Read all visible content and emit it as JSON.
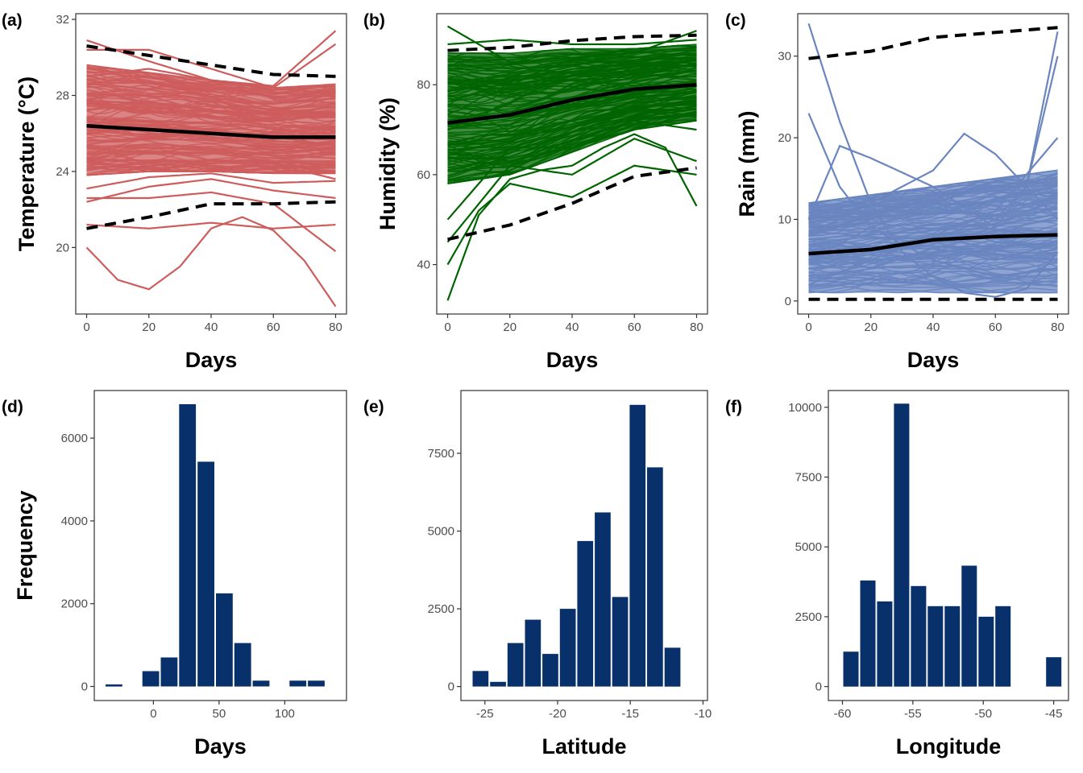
{
  "colors": {
    "temperature": "#cd5c5c",
    "humidity": "#006400",
    "rain": "#6a85c0",
    "histogram": "#08306b",
    "mean_line": "#000000",
    "frame": "#333333"
  },
  "chart_data": [
    {
      "panel": "(a)",
      "type": "line",
      "xlabel": "Days",
      "ylabel": "Temperature (°C)",
      "xlim": [
        -3.5,
        83.5
      ],
      "ylim": [
        16.5,
        32.3
      ],
      "xticks": [
        0,
        20,
        40,
        60,
        80
      ],
      "yticks": [
        20,
        24,
        28,
        32
      ],
      "band": {
        "x": [
          0,
          20,
          40,
          60,
          80
        ],
        "lower": [
          23.8,
          24.0,
          24.0,
          23.9,
          23.9
        ],
        "upper": [
          29.6,
          29.2,
          28.8,
          28.4,
          28.6
        ]
      },
      "mean": {
        "x": [
          0,
          20,
          40,
          60,
          80
        ],
        "y": [
          26.4,
          26.2,
          26.0,
          25.8,
          25.8
        ]
      },
      "upper_bound": {
        "x": [
          0,
          20,
          40,
          60,
          80
        ],
        "y": [
          30.6,
          30.1,
          29.6,
          29.1,
          29.0
        ]
      },
      "lower_bound": {
        "x": [
          0,
          20,
          40,
          60,
          80
        ],
        "y": [
          21.0,
          21.6,
          22.3,
          22.3,
          22.4
        ]
      },
      "sample_lines": [
        {
          "x": [
            0,
            10,
            20,
            30,
            40,
            50,
            60,
            70,
            80
          ],
          "y": [
            20.0,
            18.3,
            17.8,
            19.0,
            21.0,
            21.6,
            20.9,
            19.3,
            16.9
          ]
        },
        {
          "x": [
            0,
            20,
            40,
            60,
            80
          ],
          "y": [
            21.2,
            21.0,
            21.3,
            21.0,
            21.2
          ]
        },
        {
          "x": [
            0,
            20,
            40,
            60,
            80
          ],
          "y": [
            22.6,
            22.6,
            22.9,
            22.3,
            19.8
          ]
        },
        {
          "x": [
            0,
            20,
            40,
            60,
            80
          ],
          "y": [
            22.4,
            23.2,
            23.6,
            23.0,
            22.6
          ]
        },
        {
          "x": [
            0,
            20,
            40,
            60,
            80
          ],
          "y": [
            30.9,
            29.8,
            28.8,
            28.5,
            31.4
          ]
        },
        {
          "x": [
            0,
            20,
            40,
            60,
            80
          ],
          "y": [
            30.4,
            30.4,
            29.4,
            28.4,
            30.7
          ]
        },
        {
          "x": [
            0,
            20,
            40,
            60,
            80
          ],
          "y": [
            29.0,
            29.4,
            28.8,
            28.3,
            28.5
          ]
        },
        {
          "x": [
            0,
            20,
            40,
            60,
            80
          ],
          "y": [
            24.6,
            24.0,
            24.6,
            24.4,
            23.6
          ]
        },
        {
          "x": [
            0,
            20,
            40,
            60,
            80
          ],
          "y": [
            23.1,
            23.7,
            23.9,
            23.4,
            23.5
          ]
        }
      ]
    },
    {
      "panel": "(b)",
      "type": "line",
      "xlabel": "Days",
      "ylabel": "Humidity (%)",
      "xlim": [
        -3.5,
        83.5
      ],
      "ylim": [
        29.0,
        95.8
      ],
      "xticks": [
        0,
        20,
        40,
        60,
        80
      ],
      "yticks": [
        40,
        60,
        80
      ],
      "band": {
        "x": [
          0,
          20,
          40,
          60,
          80
        ],
        "lower": [
          58,
          60,
          65,
          70,
          72
        ],
        "upper": [
          87,
          87,
          88,
          88,
          89
        ]
      },
      "mean": {
        "x": [
          0,
          20,
          40,
          60,
          80
        ],
        "y": [
          71.5,
          73.3,
          76.6,
          79.0,
          80.0
        ]
      },
      "upper_bound": {
        "x": [
          0,
          20,
          40,
          60,
          80
        ],
        "y": [
          87.6,
          88.3,
          89.8,
          90.7,
          91.0
        ]
      },
      "lower_bound": {
        "x": [
          0,
          20,
          40,
          60,
          80
        ],
        "y": [
          45.6,
          48.8,
          53.6,
          59.6,
          61.5
        ]
      },
      "sample_lines": [
        {
          "x": [
            0,
            10,
            20,
            30,
            40,
            50,
            60,
            70,
            80
          ],
          "y": [
            32,
            51,
            59,
            61,
            62,
            66,
            69,
            66,
            53
          ]
        },
        {
          "x": [
            0,
            10,
            20,
            40,
            60,
            80
          ],
          "y": [
            40,
            52,
            58,
            55,
            62,
            60
          ]
        },
        {
          "x": [
            0,
            20,
            40,
            60,
            80
          ],
          "y": [
            45,
            62,
            60,
            68,
            63
          ]
        },
        {
          "x": [
            0,
            20,
            40,
            60,
            80
          ],
          "y": [
            50,
            66,
            66,
            72,
            70
          ]
        },
        {
          "x": [
            0,
            20,
            40,
            60,
            80
          ],
          "y": [
            93,
            85,
            86,
            87,
            92
          ]
        },
        {
          "x": [
            0,
            20,
            40,
            60,
            80
          ],
          "y": [
            89,
            90,
            89,
            89,
            90
          ]
        },
        {
          "x": [
            0,
            20,
            40,
            60,
            80
          ],
          "y": [
            65,
            63,
            66,
            70,
            74
          ]
        }
      ]
    },
    {
      "panel": "(c)",
      "type": "line",
      "xlabel": "Days",
      "ylabel": "Rain (mm)",
      "xlim": [
        -3.5,
        83.5
      ],
      "ylim": [
        -1.6,
        35.2
      ],
      "xticks": [
        0,
        20,
        40,
        60,
        80
      ],
      "yticks": [
        0,
        10,
        20,
        30
      ],
      "band": {
        "x": [
          0,
          20,
          40,
          60,
          80
        ],
        "lower": [
          1.0,
          1.0,
          1.0,
          1.0,
          1.0
        ],
        "upper": [
          12.0,
          13.0,
          14.0,
          15.0,
          16.0
        ]
      },
      "mean": {
        "x": [
          0,
          20,
          40,
          60,
          80
        ],
        "y": [
          5.8,
          6.3,
          7.5,
          7.9,
          8.1
        ]
      },
      "upper_bound": {
        "x": [
          0,
          20,
          40,
          60,
          80
        ],
        "y": [
          29.7,
          30.6,
          32.3,
          32.9,
          33.5
        ]
      },
      "lower_bound": {
        "x": [
          0,
          20,
          40,
          60,
          80
        ],
        "y": [
          0.2,
          0.2,
          0.2,
          0.2,
          0.2
        ]
      },
      "sample_lines": [
        {
          "x": [
            0,
            10,
            20,
            30,
            40,
            50,
            60,
            70,
            80
          ],
          "y": [
            34.0,
            22.0,
            12.0,
            6.0,
            3.0,
            1.0,
            0.5,
            1.5,
            6.0
          ]
        },
        {
          "x": [
            0,
            10,
            20,
            40,
            60,
            80
          ],
          "y": [
            23.0,
            14.0,
            9.0,
            5.0,
            3.0,
            4.0
          ]
        },
        {
          "x": [
            0,
            10,
            20,
            40,
            60,
            70,
            80
          ],
          "y": [
            10.0,
            19.0,
            17.5,
            14.0,
            9.0,
            14.0,
            30.0
          ]
        },
        {
          "x": [
            0,
            20,
            40,
            50,
            60,
            80
          ],
          "y": [
            8.0,
            12.0,
            16.0,
            20.5,
            18.0,
            10.0
          ]
        },
        {
          "x": [
            0,
            20,
            40,
            60,
            70,
            80
          ],
          "y": [
            5.0,
            9.0,
            12.0,
            10.0,
            14.0,
            33.0
          ]
        },
        {
          "x": [
            0,
            20,
            40,
            60,
            80
          ],
          "y": [
            2.0,
            5.0,
            8.0,
            11.0,
            20.0
          ]
        },
        {
          "x": [
            0,
            20,
            40,
            60,
            80
          ],
          "y": [
            6.0,
            4.0,
            6.5,
            5.0,
            7.0
          ]
        }
      ]
    },
    {
      "panel": "(d)",
      "type": "bar",
      "xlabel": "Days",
      "ylabel": "Frequency",
      "xlim": [
        -45,
        147
      ],
      "ylim": [
        -340,
        7150
      ],
      "xticks": [
        0,
        50,
        100
      ],
      "yticks": [
        0,
        2000,
        4000,
        6000
      ],
      "bin_width": 14,
      "bin_centers": [
        -30,
        -16,
        -2,
        12,
        26,
        40,
        54,
        68,
        82,
        96,
        110,
        124,
        138
      ],
      "values": [
        50,
        0,
        370,
        700,
        6820,
        5430,
        2250,
        1050,
        140,
        0,
        140,
        140,
        0
      ]
    },
    {
      "panel": "(e)",
      "type": "bar",
      "xlabel": "Latitude",
      "ylabel": "",
      "xlim": [
        -26.65,
        -9.69
      ],
      "ylim": [
        -450,
        9520
      ],
      "xticks": [
        -25,
        -20,
        -15,
        -10
      ],
      "yticks": [
        0,
        2500,
        5000,
        7500
      ],
      "bin_width": 1.2,
      "bin_centers": [
        -25.3,
        -24.1,
        -22.9,
        -21.7,
        -20.5,
        -19.3,
        -18.1,
        -16.9,
        -15.7,
        -14.5,
        -13.3,
        -12.1,
        -10.9
      ],
      "values": [
        500,
        150,
        1400,
        2150,
        1050,
        2500,
        4680,
        5600,
        2880,
        9060,
        7050,
        1250,
        0
      ]
    },
    {
      "panel": "(f)",
      "type": "bar",
      "xlabel": "Longitude",
      "ylabel": "",
      "xlim": [
        -61.0,
        -43.95
      ],
      "ylim": [
        -500,
        10600
      ],
      "xticks": [
        -60,
        -55,
        -50,
        -45
      ],
      "yticks": [
        0,
        2500,
        5000,
        7500,
        10000
      ],
      "bin_width": 1.2,
      "bin_centers": [
        -59.4,
        -58.2,
        -57.0,
        -55.8,
        -54.6,
        -53.4,
        -52.2,
        -51.0,
        -49.8,
        -48.6,
        -47.4,
        -46.2,
        -45.0
      ],
      "values": [
        1250,
        3800,
        3050,
        10130,
        3600,
        2880,
        2880,
        4330,
        2500,
        2880,
        0,
        0,
        1050
      ]
    }
  ]
}
